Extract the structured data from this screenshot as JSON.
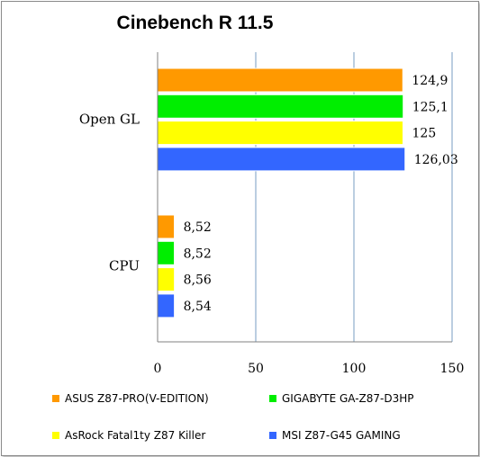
{
  "chart_data": {
    "type": "bar",
    "orientation": "horizontal",
    "title": "Cinebench R 11.5",
    "categories": [
      "Open GL",
      "CPU"
    ],
    "series": [
      {
        "name": "ASUS Z87-PRO(V-EDITION)",
        "color": "#ff9900",
        "values": [
          124.9,
          8.52
        ],
        "labels": [
          "124,9",
          "8,52"
        ]
      },
      {
        "name": "GIGABYTE GA-Z87-D3HP",
        "color": "#00ee00",
        "values": [
          125.1,
          8.52
        ],
        "labels": [
          "125,1",
          "8,52"
        ]
      },
      {
        "name": "AsRock Fatal1ty Z87 Killer",
        "color": "#ffff00",
        "values": [
          125,
          8.56
        ],
        "labels": [
          "125",
          "8,56"
        ]
      },
      {
        "name": "MSI Z87-G45 GAMING",
        "color": "#3366ff",
        "values": [
          126.03,
          8.54
        ],
        "labels": [
          "126,03",
          "8,54"
        ]
      }
    ],
    "xlim": [
      0,
      150
    ],
    "xticks": [
      0,
      50,
      100,
      150
    ],
    "grid": true,
    "legend_position": "bottom"
  }
}
